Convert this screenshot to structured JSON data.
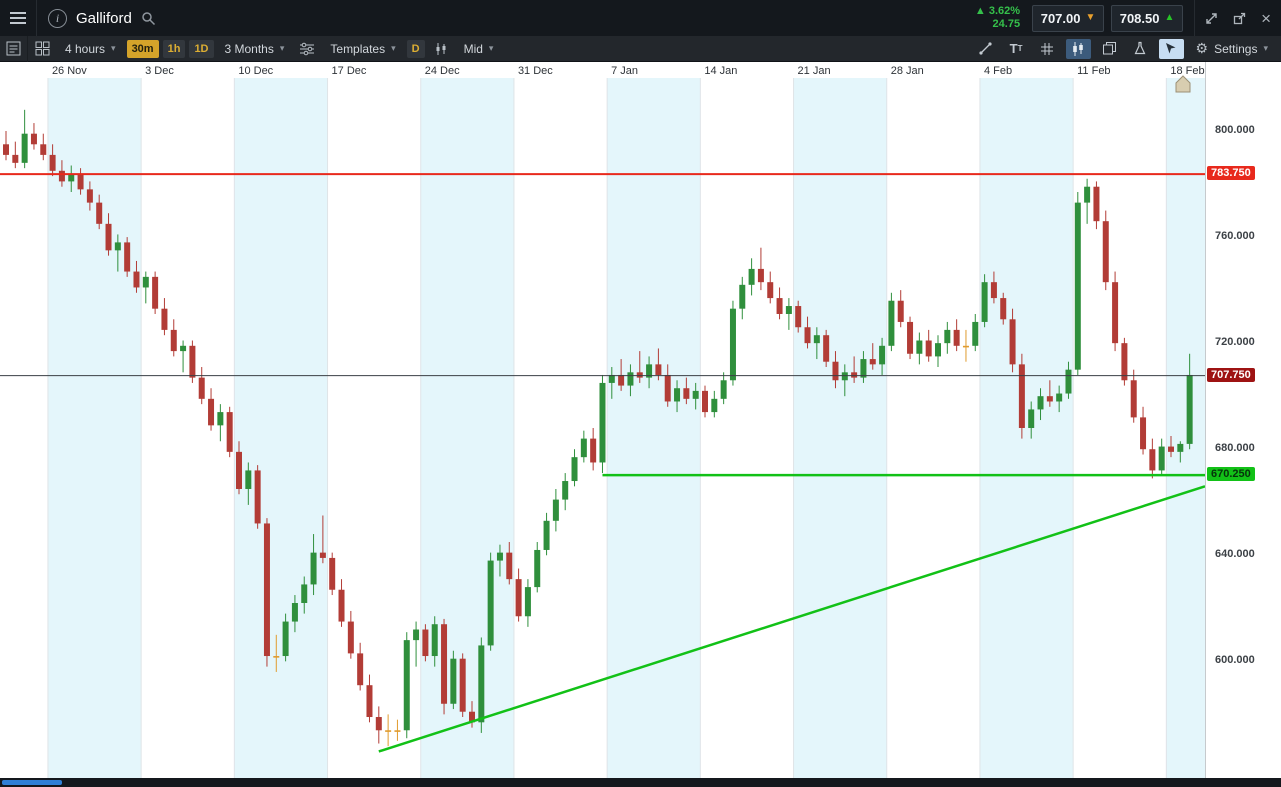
{
  "header": {
    "title": "Galliford",
    "change": {
      "direction": "up",
      "percent": "3.62%",
      "amount": "24.75"
    },
    "sell": {
      "price": "707.00"
    },
    "buy": {
      "price": "708.50"
    }
  },
  "toolbar": {
    "interval": "4 hours",
    "quick_intervals": [
      "30m",
      "1h",
      "1D"
    ],
    "range": "3 Months",
    "templates": "Templates",
    "daily_chip": "D",
    "price_type": "Mid",
    "settings": "Settings"
  },
  "chart_data": {
    "type": "candlestick",
    "title": "Galliford 4-hour candlestick chart, 3 months",
    "x_labels": [
      "26 Nov",
      "3 Dec",
      "10 Dec",
      "17 Dec",
      "24 Dec",
      "31 Dec",
      "7 Jan",
      "14 Jan",
      "21 Jan",
      "28 Jan",
      "4 Feb",
      "11 Feb",
      "18 Feb"
    ],
    "y_ticks": [
      {
        "value": 800,
        "label": "800.000"
      },
      {
        "value": 760,
        "label": "760.000"
      },
      {
        "value": 720,
        "label": "720.000"
      },
      {
        "value": 680,
        "label": "680.000"
      },
      {
        "value": 640,
        "label": "640.000"
      },
      {
        "value": 600,
        "label": "600.000"
      }
    ],
    "ylim": [
      556,
      820
    ],
    "current_price": {
      "value": 707.75,
      "label": "707.750"
    },
    "resistance": {
      "value": 783.75,
      "label": "783.750"
    },
    "support": {
      "value": 670.25,
      "label": "670.250",
      "start_index": 64
    },
    "trendline": {
      "start_index": 40,
      "start_price": 566,
      "end_price": 666
    },
    "colors": {
      "up": "#2f8f3c",
      "down": "#b23c36",
      "doji": "#e09b2d",
      "stripe": "#e4f6fb",
      "support": "#12c117",
      "resistance": "#e8291c",
      "current": "#9e1313"
    },
    "candles": [
      [
        795,
        800,
        789,
        791
      ],
      [
        791,
        796,
        786,
        788
      ],
      [
        788,
        808,
        786,
        799
      ],
      [
        799,
        803,
        793,
        795
      ],
      [
        795,
        799,
        789,
        791
      ],
      [
        791,
        795,
        783,
        785
      ],
      [
        785,
        789,
        779,
        781
      ],
      [
        781,
        787,
        777,
        784
      ],
      [
        784,
        786,
        776,
        778
      ],
      [
        778,
        781,
        770,
        773
      ],
      [
        773,
        776,
        763,
        765
      ],
      [
        765,
        769,
        753,
        755
      ],
      [
        755,
        761,
        747,
        758
      ],
      [
        758,
        760,
        745,
        747
      ],
      [
        747,
        751,
        739,
        741
      ],
      [
        741,
        747,
        735,
        745
      ],
      [
        745,
        747,
        731,
        733
      ],
      [
        733,
        737,
        723,
        725
      ],
      [
        725,
        729,
        715,
        717
      ],
      [
        717,
        721,
        709,
        719
      ],
      [
        719,
        721,
        705,
        707
      ],
      [
        707,
        711,
        697,
        699
      ],
      [
        699,
        703,
        687,
        689
      ],
      [
        689,
        697,
        683,
        694
      ],
      [
        694,
        696,
        677,
        679
      ],
      [
        679,
        683,
        663,
        665
      ],
      [
        665,
        675,
        659,
        672
      ],
      [
        672,
        674,
        650,
        652
      ],
      [
        652,
        654,
        598,
        602
      ],
      [
        602,
        610,
        596,
        602
      ],
      [
        602,
        618,
        600,
        615
      ],
      [
        615,
        625,
        611,
        622
      ],
      [
        622,
        632,
        618,
        629
      ],
      [
        629,
        648,
        625,
        641
      ],
      [
        641,
        655,
        637,
        639
      ],
      [
        639,
        641,
        625,
        627
      ],
      [
        627,
        631,
        613,
        615
      ],
      [
        615,
        619,
        601,
        603
      ],
      [
        603,
        607,
        589,
        591
      ],
      [
        591,
        595,
        577,
        579
      ],
      [
        579,
        583,
        569,
        574
      ],
      [
        574,
        580,
        568,
        574
      ],
      [
        574,
        578,
        570,
        574
      ],
      [
        574,
        611,
        571,
        608
      ],
      [
        608,
        615,
        598,
        612
      ],
      [
        612,
        614,
        600,
        602
      ],
      [
        602,
        617,
        598,
        614
      ],
      [
        614,
        616,
        580,
        584
      ],
      [
        584,
        604,
        582,
        601
      ],
      [
        601,
        603,
        579,
        581
      ],
      [
        581,
        585,
        575,
        577
      ],
      [
        577,
        609,
        573,
        606
      ],
      [
        606,
        641,
        604,
        638
      ],
      [
        638,
        644,
        632,
        641
      ],
      [
        641,
        645,
        629,
        631
      ],
      [
        631,
        635,
        615,
        617
      ],
      [
        617,
        631,
        613,
        628
      ],
      [
        628,
        645,
        626,
        642
      ],
      [
        642,
        656,
        640,
        653
      ],
      [
        653,
        665,
        649,
        661
      ],
      [
        661,
        671,
        657,
        668
      ],
      [
        668,
        680,
        666,
        677
      ],
      [
        677,
        687,
        675,
        684
      ],
      [
        684,
        688,
        672,
        675
      ],
      [
        675,
        708,
        671,
        705
      ],
      [
        705,
        711,
        699,
        708
      ],
      [
        708,
        714,
        702,
        704
      ],
      [
        704,
        712,
        700,
        709
      ],
      [
        709,
        717,
        705,
        707
      ],
      [
        707,
        715,
        703,
        712
      ],
      [
        712,
        718,
        706,
        708
      ],
      [
        708,
        712,
        696,
        698
      ],
      [
        698,
        706,
        694,
        703
      ],
      [
        703,
        707,
        697,
        699
      ],
      [
        699,
        705,
        695,
        702
      ],
      [
        702,
        704,
        692,
        694
      ],
      [
        694,
        702,
        692,
        699
      ],
      [
        699,
        709,
        697,
        706
      ],
      [
        706,
        736,
        704,
        733
      ],
      [
        733,
        745,
        729,
        742
      ],
      [
        742,
        752,
        738,
        748
      ],
      [
        748,
        756,
        740,
        743
      ],
      [
        743,
        747,
        735,
        737
      ],
      [
        737,
        741,
        729,
        731
      ],
      [
        731,
        737,
        725,
        734
      ],
      [
        734,
        736,
        724,
        726
      ],
      [
        726,
        730,
        718,
        720
      ],
      [
        720,
        726,
        714,
        723
      ],
      [
        723,
        725,
        711,
        713
      ],
      [
        713,
        717,
        703,
        706
      ],
      [
        706,
        712,
        700,
        709
      ],
      [
        709,
        715,
        705,
        707
      ],
      [
        707,
        717,
        705,
        714
      ],
      [
        714,
        720,
        710,
        712
      ],
      [
        712,
        722,
        708,
        719
      ],
      [
        719,
        739,
        717,
        736
      ],
      [
        736,
        740,
        726,
        728
      ],
      [
        728,
        730,
        714,
        716
      ],
      [
        716,
        724,
        712,
        721
      ],
      [
        721,
        725,
        713,
        715
      ],
      [
        715,
        723,
        711,
        720
      ],
      [
        720,
        728,
        716,
        725
      ],
      [
        725,
        729,
        717,
        719
      ],
      [
        719,
        725,
        713,
        719
      ],
      [
        719,
        731,
        717,
        728
      ],
      [
        728,
        746,
        726,
        743
      ],
      [
        743,
        747,
        735,
        737
      ],
      [
        737,
        739,
        727,
        729
      ],
      [
        729,
        733,
        709,
        712
      ],
      [
        712,
        716,
        684,
        688
      ],
      [
        688,
        698,
        684,
        695
      ],
      [
        695,
        703,
        691,
        700
      ],
      [
        700,
        706,
        696,
        698
      ],
      [
        698,
        704,
        694,
        701
      ],
      [
        701,
        713,
        699,
        710
      ],
      [
        710,
        777,
        708,
        773
      ],
      [
        773,
        782,
        765,
        779
      ],
      [
        779,
        781,
        763,
        766
      ],
      [
        766,
        770,
        740,
        743
      ],
      [
        743,
        747,
        717,
        720
      ],
      [
        720,
        722,
        704,
        706
      ],
      [
        706,
        710,
        690,
        692
      ],
      [
        692,
        696,
        678,
        680
      ],
      [
        680,
        684,
        669,
        672
      ],
      [
        672,
        684,
        670,
        681
      ],
      [
        681,
        685,
        677,
        679
      ],
      [
        679,
        683,
        675,
        682
      ],
      [
        682,
        716,
        680,
        708
      ]
    ]
  }
}
